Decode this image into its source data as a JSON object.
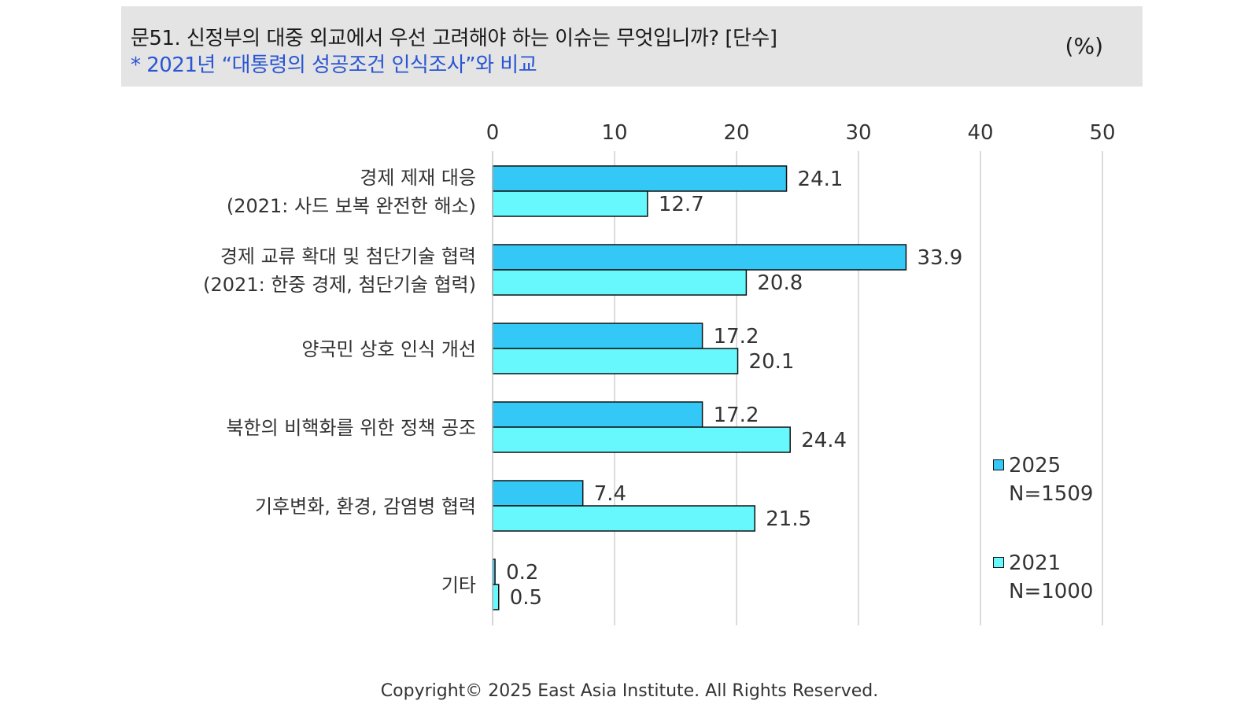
{
  "header": {
    "title": "문51. 신정부의 대중 외교에서 우선 고려해야 하는 이슈는 무엇입니까? [단수]",
    "subtitle": "* 2021년 “대통령의 성공조건 인식조사”와 비교",
    "unit": "(%)"
  },
  "chart_data": {
    "type": "bar",
    "orientation": "horizontal",
    "xlim": [
      0,
      50
    ],
    "ticks": [
      "0",
      "10",
      "20",
      "30",
      "40",
      "50"
    ],
    "grid": true,
    "categories": [
      [
        "경제 제재 대응",
        "(2021: 사드 보복 완전한 해소)"
      ],
      [
        "경제 교류 확대 및 첨단기술 협력",
        "(2021: 한중 경제, 첨단기술 협력)"
      ],
      [
        "양국민 상호 인식 개선"
      ],
      [
        "북한의 비핵화를 위한 정책 공조"
      ],
      [
        "기후변화, 환경, 감염병 협력"
      ],
      [
        "기타"
      ]
    ],
    "series": [
      {
        "name": "2025",
        "n": "N=1509",
        "color": "#33c8f5",
        "values": [
          24.1,
          33.9,
          17.2,
          17.2,
          7.4,
          0.2
        ]
      },
      {
        "name": "2021",
        "n": "N=1000",
        "color": "#66f8fc",
        "values": [
          12.7,
          20.8,
          20.1,
          24.4,
          21.5,
          0.5
        ]
      }
    ],
    "legend_position": "bottom-right"
  },
  "footer": {
    "copyright": "Copyright© 2025 East Asia Institute. All Rights Reserved."
  }
}
